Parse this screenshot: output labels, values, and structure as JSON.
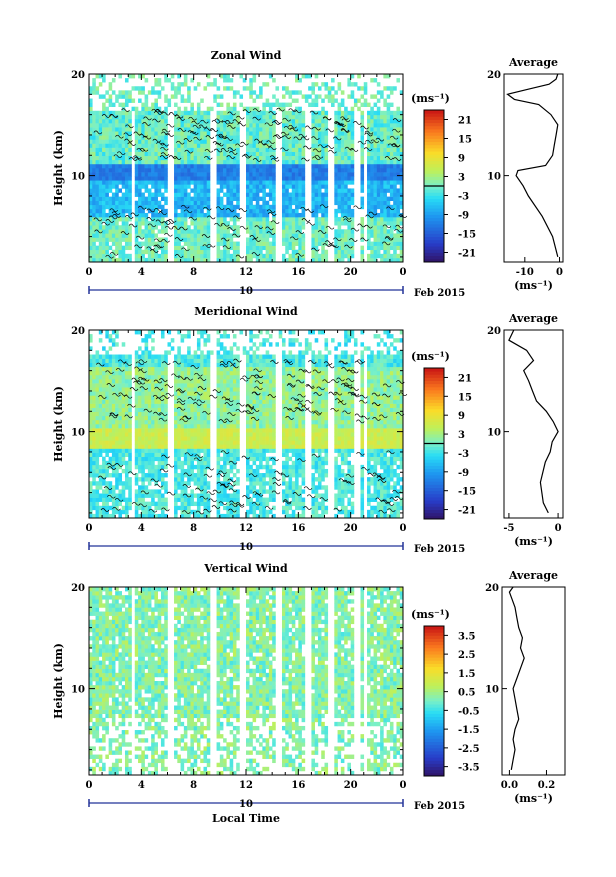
{
  "chart_data": [
    {
      "type": "heatmap",
      "title": "Zonal Wind",
      "xlabel": "",
      "ylabel": "Height (km)",
      "xlim": [
        0,
        24
      ],
      "ylim": [
        1.5,
        20
      ],
      "xticks": [
        "0",
        "4",
        "8",
        "12",
        "16",
        "20",
        "0"
      ],
      "yticks": [
        "10",
        "20"
      ],
      "date_axis": {
        "day": "10",
        "month_label": "Feb 2015"
      },
      "colorbar": {
        "unit": "(ms⁻¹)",
        "ticks": [
          "21",
          "15",
          "9",
          "3",
          "-3",
          "-9",
          "-15",
          "-21"
        ],
        "min": -24,
        "max": 24
      },
      "profile": {
        "title": "Average",
        "xlabel": "(ms⁻¹)",
        "xticks": [
          "-10",
          "0"
        ],
        "xlim": [
          -16,
          1
        ],
        "height": [
          2,
          4,
          6,
          8,
          9,
          10,
          10.5,
          11,
          12,
          13,
          14,
          15,
          16,
          17,
          17.5,
          18,
          18.5,
          19,
          19.5,
          20
        ],
        "value": [
          -0.5,
          -2,
          -5,
          -9,
          -10.5,
          -12.5,
          -12,
          -4,
          -2,
          -1.5,
          -1,
          -0.5,
          -2.5,
          -6,
          -13,
          -15,
          -9,
          -3,
          -1,
          -0.5
        ]
      }
    },
    {
      "type": "heatmap",
      "title": "Meridional Wind",
      "xlabel": "",
      "ylabel": "Height (km)",
      "xlim": [
        0,
        24
      ],
      "ylim": [
        1.5,
        20
      ],
      "xticks": [
        "0",
        "4",
        "8",
        "12",
        "16",
        "20",
        "0"
      ],
      "yticks": [
        "10",
        "20"
      ],
      "date_axis": {
        "day": "10",
        "month_label": "Feb 2015"
      },
      "colorbar": {
        "unit": "(ms⁻¹)",
        "ticks": [
          "21",
          "15",
          "9",
          "3",
          "-3",
          "-9",
          "-15",
          "-21"
        ],
        "min": -24,
        "max": 24
      },
      "profile": {
        "title": "Average",
        "xlabel": "(ms⁻¹)",
        "xticks": [
          "-5",
          "0"
        ],
        "xlim": [
          -5.5,
          0.5
        ],
        "height": [
          2,
          3,
          5,
          7,
          8,
          9,
          10,
          11,
          12,
          13,
          14,
          15,
          16,
          17,
          18,
          19,
          20
        ],
        "value": [
          -1,
          -1.5,
          -1.8,
          -1.3,
          -0.8,
          -0.6,
          0,
          -0.5,
          -1.2,
          -2.2,
          -2.6,
          -3,
          -3.5,
          -2.5,
          -3.2,
          -5,
          -4.5
        ]
      }
    },
    {
      "type": "heatmap",
      "title": "Vertical Wind",
      "xlabel": "Local Time",
      "ylabel": "Height (km)",
      "xlim": [
        0,
        24
      ],
      "ylim": [
        1.5,
        20
      ],
      "xticks": [
        "0",
        "4",
        "8",
        "12",
        "16",
        "20",
        "0"
      ],
      "yticks": [
        "10",
        "20"
      ],
      "date_axis": {
        "day": "10",
        "month_label": "Feb 2015"
      },
      "colorbar": {
        "unit": "(ms⁻¹)",
        "ticks": [
          "3.5",
          "2.5",
          "1.5",
          "0.5",
          "-0.5",
          "-1.5",
          "-2.5",
          "-3.5"
        ],
        "min": -4,
        "max": 4
      },
      "profile": {
        "title": "Average",
        "xlabel": "(ms⁻¹)",
        "xticks": [
          "0.0",
          "0.2"
        ],
        "xlim": [
          -0.04,
          0.3
        ],
        "height": [
          2,
          3,
          4,
          5,
          6,
          7,
          8,
          9,
          10,
          11,
          12,
          13,
          14,
          15,
          16,
          17,
          18,
          19,
          19.5,
          20
        ],
        "value": [
          0.01,
          0.02,
          0.03,
          0.02,
          0.03,
          0.05,
          0.04,
          0.03,
          0.02,
          0.04,
          0.06,
          0.08,
          0.06,
          0.07,
          0.05,
          0.04,
          0.03,
          0.01,
          0.0,
          0.02
        ]
      }
    }
  ]
}
